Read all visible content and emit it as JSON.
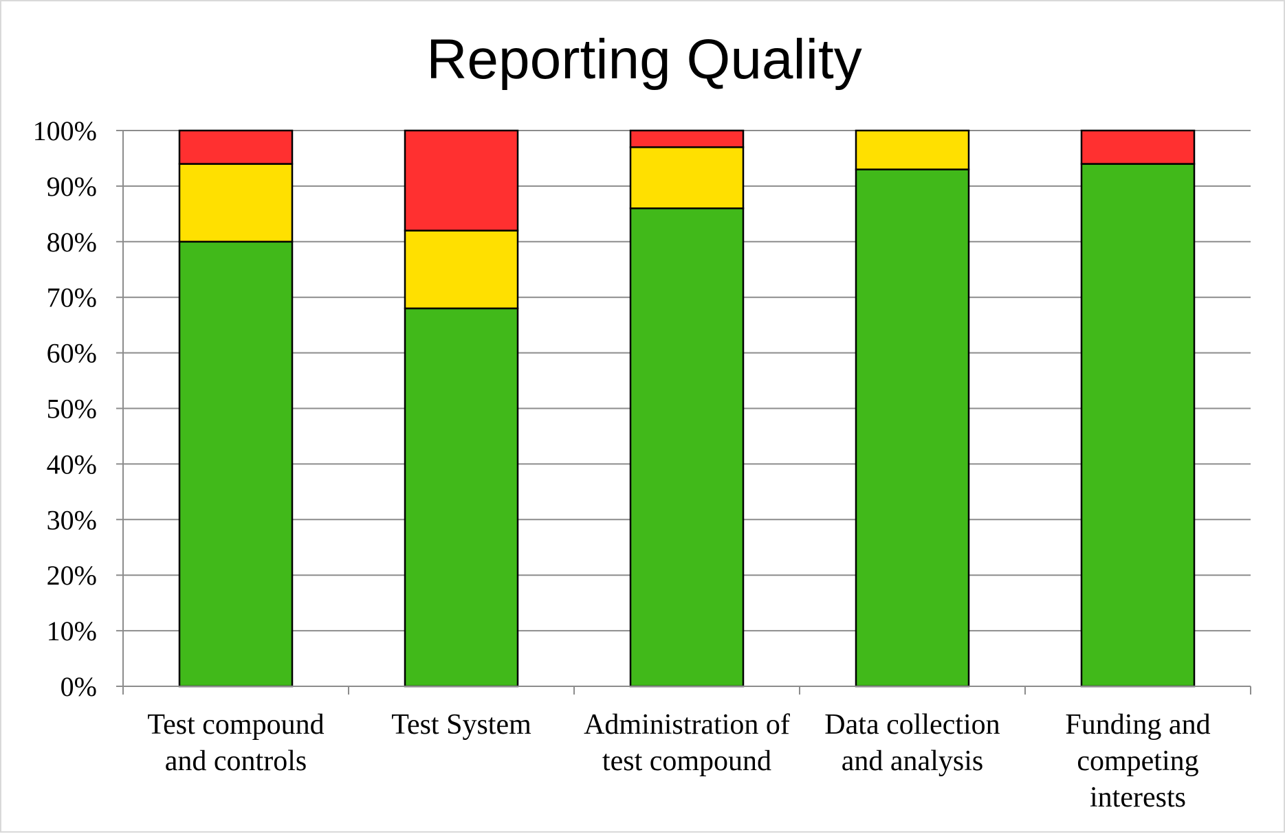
{
  "chart_data": {
    "type": "bar",
    "stacked": true,
    "title": "Reporting Quality",
    "xlabel": "",
    "ylabel": "",
    "ylim": [
      0,
      100
    ],
    "yticks": [
      "0%",
      "10%",
      "20%",
      "30%",
      "40%",
      "50%",
      "60%",
      "70%",
      "80%",
      "90%",
      "100%"
    ],
    "grid": true,
    "legend": "none",
    "categories": [
      [
        "Test compound",
        "and controls"
      ],
      [
        "Test System"
      ],
      [
        "Administration of",
        "test compound"
      ],
      [
        "Data collection",
        "and analysis"
      ],
      [
        "Funding and",
        "competing",
        "interests"
      ]
    ],
    "series": [
      {
        "color": "#41b91a",
        "values": [
          80,
          68,
          86,
          93,
          94
        ]
      },
      {
        "color": "#ffe000",
        "values": [
          14,
          14,
          11,
          7,
          0
        ]
      },
      {
        "color": "#ff3030",
        "values": [
          6,
          18,
          3,
          0,
          6
        ]
      }
    ]
  }
}
